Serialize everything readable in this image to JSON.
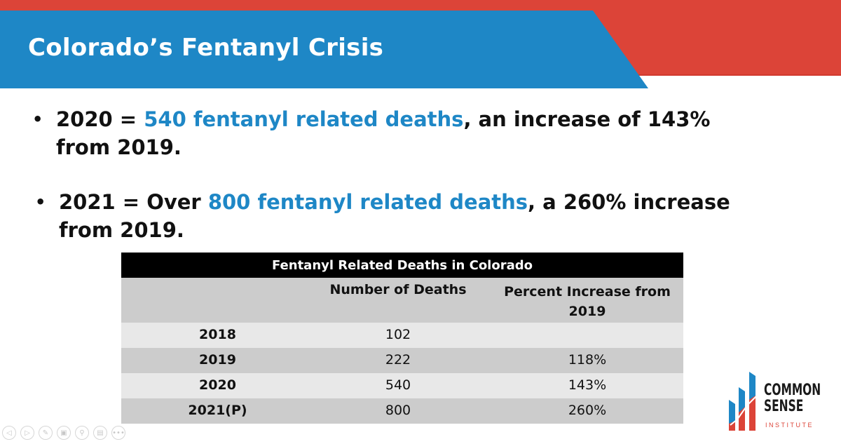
{
  "slide": {
    "title": "Colorado’s Fentanyl Crisis",
    "colors": {
      "accent_blue": "#1e87c6",
      "accent_red": "#dc4438"
    },
    "bullets": [
      {
        "prefix": "2020 = ",
        "highlight": "540 fentanyl related deaths",
        "suffix": ", an increase of 143% from 2019."
      },
      {
        "prefix": "2021 = Over ",
        "highlight": "800 fentanyl related deaths",
        "suffix": ", a 260% increase from 2019."
      }
    ],
    "bullet_glyph": "•"
  },
  "table": {
    "title": "Fentanyl Related Deaths in Colorado",
    "columns": [
      "",
      "Number of Deaths",
      "Percent Increase from 2019"
    ],
    "rows": [
      {
        "year": "2018",
        "deaths": "102",
        "pct": ""
      },
      {
        "year": "2019",
        "deaths": "222",
        "pct": "118%"
      },
      {
        "year": "2020",
        "deaths": "540",
        "pct": "143%"
      },
      {
        "year": "2021(P)",
        "deaths": "800",
        "pct": "260%"
      }
    ]
  },
  "logo": {
    "line1": "COMMON",
    "line2": "SENSE",
    "line3": "INSTITUTE"
  },
  "controls": [
    {
      "name": "previous-icon",
      "glyph": "◁"
    },
    {
      "name": "next-icon",
      "glyph": "▷"
    },
    {
      "name": "pen-icon",
      "glyph": "✎"
    },
    {
      "name": "slides-icon",
      "glyph": "▣"
    },
    {
      "name": "zoom-icon",
      "glyph": "⚲"
    },
    {
      "name": "subtitles-icon",
      "glyph": "▤"
    },
    {
      "name": "more-icon",
      "glyph": "•••"
    }
  ]
}
